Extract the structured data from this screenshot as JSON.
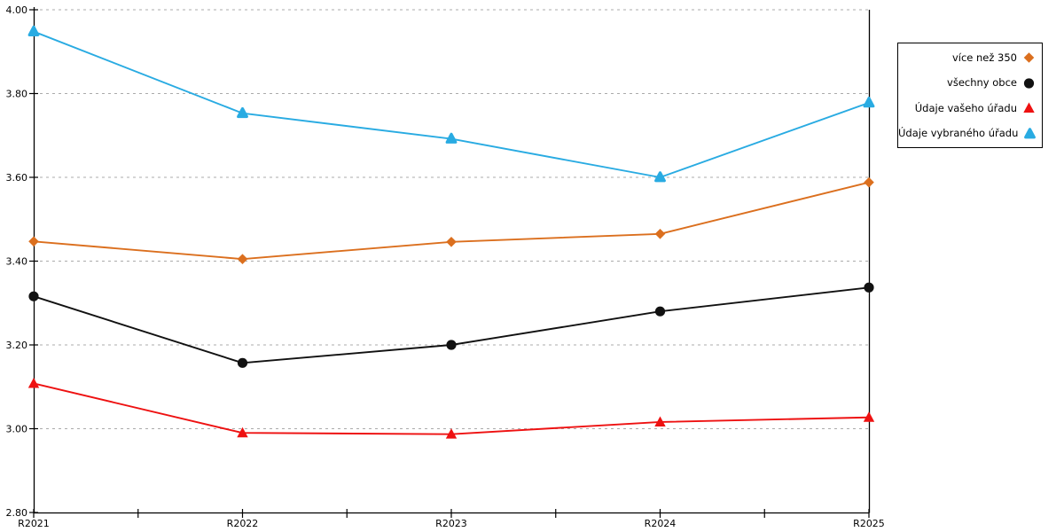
{
  "chart_data": {
    "type": "line",
    "title": "",
    "xlabel": "",
    "ylabel": "",
    "categories": [
      "R2021",
      "R2022",
      "R2023",
      "R2024",
      "R2025"
    ],
    "series": [
      {
        "name": "více než 350",
        "color": "#DB6F1E",
        "marker": "diamond",
        "values": [
          3.447,
          3.405,
          3.446,
          3.465,
          3.588
        ]
      },
      {
        "name": "všechny obce",
        "color": "#111111",
        "marker": "circle",
        "values": [
          3.316,
          3.157,
          3.2,
          3.28,
          3.337
        ]
      },
      {
        "name": "Údaje vašeho úřadu",
        "color": "#EE1111",
        "marker": "triangle",
        "values": [
          3.108,
          2.99,
          2.987,
          3.016,
          3.027
        ]
      },
      {
        "name": "Údaje vybraného úřadu",
        "color": "#29ABE2",
        "marker": "triangle-rounded",
        "values": [
          3.948,
          3.753,
          3.692,
          3.6,
          3.778
        ]
      }
    ],
    "y_axis": {
      "min": 2.8,
      "max": 4.0,
      "step": 0.2,
      "ticks": [
        2.8,
        3.0,
        3.2,
        3.4,
        3.6,
        3.8,
        4.0
      ],
      "tick_labels": [
        "2.80",
        "3.00",
        "3.20",
        "3.40",
        "3.60",
        "3.80",
        "4.00"
      ]
    },
    "grid": "dashed-horizontal",
    "grid_color": "#ABABAB",
    "axis_color": "#000000",
    "legend_position": "top-right"
  }
}
